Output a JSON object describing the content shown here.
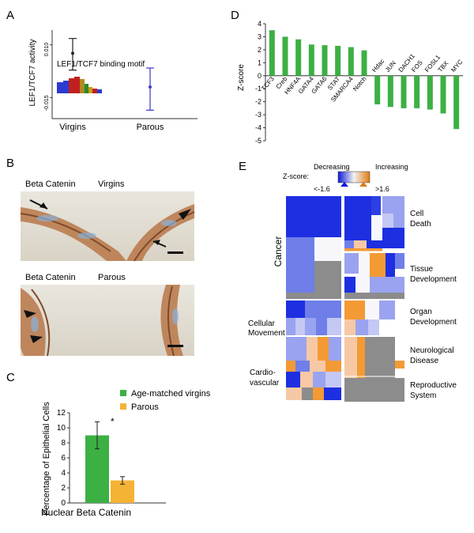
{
  "panels": {
    "A": "A",
    "B": "B",
    "C": "C",
    "D": "D",
    "E": "E"
  },
  "chart_data": [
    {
      "id": "A",
      "type": "scatter",
      "title": "",
      "ylabel": "LEF1/TCF7 activity",
      "categories": [
        "Virgins",
        "Parous"
      ],
      "values": [
        0.006,
        -0.01
      ],
      "error_low": [
        -0.002,
        -0.021
      ],
      "error_high": [
        0.013,
        -0.001
      ],
      "ytick_labels": [
        "0.010",
        "-0.015"
      ],
      "ylim": [
        -0.025,
        0.017
      ],
      "colors": [
        "#222222",
        "#3a3ac8"
      ],
      "annotation": "LEF1/TCF7 binding motif"
    },
    {
      "id": "C",
      "type": "bar",
      "ylabel": "Percentage of Epithelial Cells",
      "xlabel": "Nuclear Beta Catenin",
      "series": [
        {
          "name": "Age-matched virgins",
          "values": [
            9.0
          ],
          "error": [
            1.8
          ],
          "color": "#3cb043"
        },
        {
          "name": "Parous",
          "values": [
            3.0
          ],
          "error": [
            0.5
          ],
          "color": "#f5b335"
        }
      ],
      "yticks": [
        0,
        2,
        4,
        6,
        8,
        10,
        12
      ],
      "ylim": [
        0,
        12
      ],
      "significance": "*"
    },
    {
      "id": "D",
      "type": "bar",
      "ylabel": "Z-score",
      "categories": [
        "TCF3",
        "Creb",
        "HNF4A",
        "GATA4",
        "GATA6",
        "STAT",
        "SMARCA4",
        "Notch",
        "Hdac",
        "JUN",
        "DACH1",
        "FOS",
        "FOSL1",
        "TBX",
        "MYC"
      ],
      "values": [
        3.5,
        3.0,
        2.8,
        2.4,
        2.35,
        2.3,
        2.2,
        1.95,
        -2.2,
        -2.4,
        -2.5,
        -2.5,
        -2.6,
        -2.9,
        -4.1
      ],
      "yticks": [
        4,
        3,
        2,
        1,
        0,
        -1,
        -2,
        -3,
        -4,
        -5
      ],
      "ylim": [
        -5,
        4
      ],
      "color": "#3cb043"
    }
  ],
  "panelB": {
    "top_label_stain": "Beta Catenin",
    "top_label_group": "Virgins",
    "bottom_label_stain": "Beta Catenin",
    "bottom_label_group": "Parous"
  },
  "panelE": {
    "legend_title": "Z-score:",
    "legend_decreasing": "Decreasing",
    "legend_decreasing_value": "<-1.6",
    "legend_increasing": "Increasing",
    "legend_increasing_value": ">1.6",
    "categories": {
      "cancer": "Cancer",
      "cell_death_1": "Cell",
      "cell_death_2": "Death",
      "tissue_dev_1": "Tissue",
      "tissue_dev_2": "Development",
      "cellular_movement_1": "Cellular",
      "cellular_movement_2": "Movement",
      "organ_dev_1": "Organ",
      "organ_dev_2": "Development",
      "neuro_1": "Neurological",
      "neuro_2": "Disease",
      "cardio_1": "Cardio-",
      "cardio_2": "vascular",
      "repro_1": "Reproductive",
      "repro_2": "System"
    },
    "colors": {
      "blue": "#1d2fe0",
      "light_blue": "#9aa3ef",
      "gray": "#8c8c8c",
      "orange": "#f39a34",
      "peach": "#f6c9a4",
      "white": "#f7f7fb"
    }
  }
}
